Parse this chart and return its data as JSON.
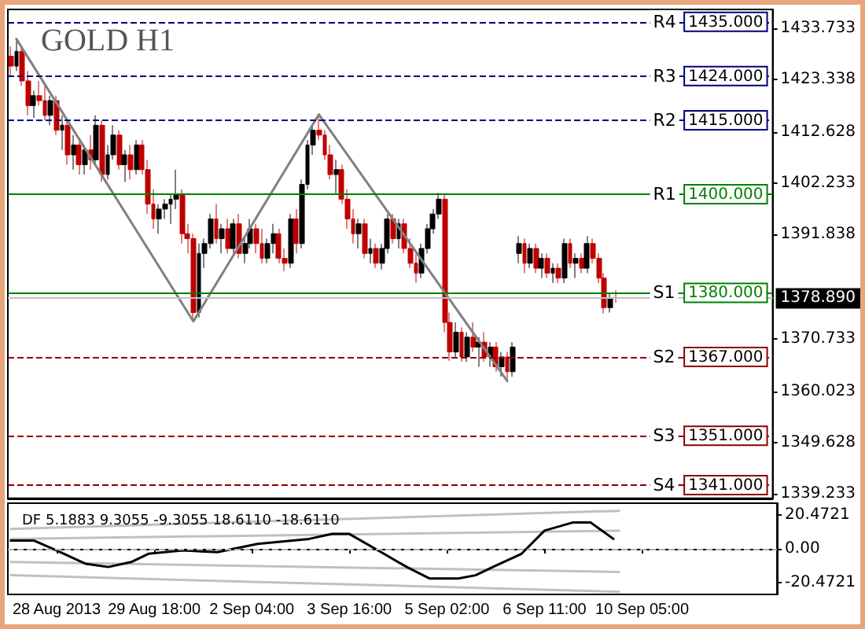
{
  "chart_data": [
    {
      "type": "candlestick",
      "title": "GOLD H1",
      "tick_labels": "y",
      "categories": [
        null,
        null,
        null,
        null,
        null,
        null,
        null,
        null,
        null,
        null,
        null,
        null,
        null,
        null,
        null,
        null,
        null,
        null,
        null,
        null,
        null,
        null,
        null,
        null,
        null,
        null,
        null,
        null,
        null,
        null,
        null,
        null,
        null,
        null,
        null,
        null,
        null,
        null,
        null,
        null,
        null,
        null,
        null,
        null,
        null,
        null,
        null,
        null,
        null,
        null,
        null,
        null,
        null,
        null,
        null,
        null,
        null,
        null,
        null,
        null,
        null,
        null,
        null,
        null,
        null,
        null,
        null,
        null,
        null,
        null,
        null,
        null,
        null,
        null,
        null,
        null,
        null,
        null,
        null,
        null,
        null,
        null,
        null,
        null,
        null,
        null,
        null,
        null,
        null,
        null,
        null,
        null,
        null,
        null,
        null,
        null,
        null,
        null,
        null,
        null,
        null,
        null,
        null,
        null,
        null,
        null,
        null,
        null,
        null,
        null,
        null,
        null,
        null,
        null,
        null,
        null,
        null,
        null,
        null,
        null,
        null,
        null,
        null,
        null,
        null,
        null,
        null,
        null,
        null,
        null,
        null,
        null,
        null,
        null
      ],
      "ylim": [
        1338.3,
        1437.5
      ],
      "yticks": [
        1339.233,
        1349.628,
        1360.023,
        1370.733,
        1391.838,
        1402.233,
        1412.628,
        1423.338,
        1433.733
      ],
      "ohlc": [
        [
          1428,
          1430,
          1424,
          1426
        ],
        [
          1426,
          1431.5,
          1425,
          1429
        ],
        [
          1429,
          1430,
          1422,
          1423
        ],
        [
          1423,
          1425,
          1416,
          1418
        ],
        [
          1418,
          1421,
          1415.5,
          1420
        ],
        [
          1420,
          1423,
          1418,
          1419
        ],
        [
          1419,
          1422,
          1415,
          1416
        ],
        [
          1416,
          1420,
          1414,
          1419
        ],
        [
          1419,
          1420,
          1412,
          1413
        ],
        [
          1413,
          1416,
          1409,
          1414
        ],
        [
          1414,
          1415,
          1406,
          1408
        ],
        [
          1408,
          1412,
          1405,
          1410
        ],
        [
          1410,
          1411,
          1404,
          1406
        ],
        [
          1406,
          1410,
          1404,
          1409
        ],
        [
          1409,
          1412,
          1405,
          1407
        ],
        [
          1407,
          1416,
          1406,
          1414
        ],
        [
          1414,
          1415,
          1402.5,
          1404
        ],
        [
          1404,
          1410,
          1403,
          1408
        ],
        [
          1408,
          1414,
          1407,
          1412
        ],
        [
          1412,
          1413,
          1405,
          1406
        ],
        [
          1406,
          1409,
          1402.5,
          1408
        ],
        [
          1408,
          1410,
          1403,
          1405
        ],
        [
          1405,
          1411,
          1404,
          1410
        ],
        [
          1410,
          1411,
          1404,
          1405
        ],
        [
          1405,
          1407,
          1396,
          1398
        ],
        [
          1398,
          1401,
          1393,
          1395
        ],
        [
          1395,
          1398,
          1392,
          1397
        ],
        [
          1397,
          1399,
          1395,
          1398
        ],
        [
          1398,
          1400,
          1394,
          1399
        ],
        [
          1399,
          1405,
          1397,
          1400
        ],
        [
          1400,
          1401,
          1390,
          1392
        ],
        [
          1392,
          1394,
          1388,
          1391
        ],
        [
          1391,
          1392,
          1374.2,
          1376
        ],
        [
          1376,
          1390,
          1375,
          1388
        ],
        [
          1388,
          1391,
          1385,
          1390
        ],
        [
          1390,
          1396,
          1389,
          1395
        ],
        [
          1395,
          1398,
          1390,
          1391
        ],
        [
          1391,
          1394,
          1388,
          1393
        ],
        [
          1393,
          1395,
          1388,
          1389
        ],
        [
          1389,
          1395,
          1388,
          1394
        ],
        [
          1394,
          1396,
          1387,
          1388
        ],
        [
          1388,
          1391,
          1386,
          1390
        ],
        [
          1390,
          1395,
          1389,
          1393
        ],
        [
          1393,
          1394,
          1388,
          1390
        ],
        [
          1390,
          1393,
          1386,
          1387
        ],
        [
          1387,
          1391,
          1386,
          1390
        ],
        [
          1390,
          1394,
          1388,
          1392
        ],
        [
          1392,
          1393,
          1386,
          1387
        ],
        [
          1387,
          1389,
          1384.4,
          1386
        ],
        [
          1386,
          1396,
          1385,
          1395
        ],
        [
          1395,
          1397,
          1388,
          1390
        ],
        [
          1390,
          1403,
          1389,
          1402
        ],
        [
          1402,
          1411,
          1401,
          1410
        ],
        [
          1410,
          1414,
          1408,
          1413
        ],
        [
          1413,
          1416.2,
          1411,
          1412
        ],
        [
          1412,
          1413,
          1407,
          1408
        ],
        [
          1408,
          1410,
          1403,
          1404
        ],
        [
          1404,
          1407,
          1400,
          1405
        ],
        [
          1405,
          1406,
          1398,
          1399
        ],
        [
          1399,
          1401,
          1393,
          1395
        ],
        [
          1395,
          1397,
          1390,
          1392
        ],
        [
          1392,
          1395,
          1389,
          1394
        ],
        [
          1394,
          1395,
          1387,
          1388
        ],
        [
          1388,
          1391,
          1386,
          1389
        ],
        [
          1389,
          1390,
          1385,
          1386
        ],
        [
          1386,
          1390,
          1384.7,
          1389
        ],
        [
          1389,
          1396,
          1388,
          1395
        ],
        [
          1395,
          1396,
          1390,
          1391
        ],
        [
          1391,
          1395,
          1389,
          1394
        ],
        [
          1394,
          1395,
          1388,
          1389
        ],
        [
          1389,
          1391,
          1385,
          1386
        ],
        [
          1386,
          1388,
          1382,
          1384
        ],
        [
          1384,
          1390,
          1383,
          1389
        ],
        [
          1389,
          1394,
          1388,
          1393
        ],
        [
          1393,
          1397,
          1392,
          1396
        ],
        [
          1396,
          1400.3,
          1395,
          1399
        ],
        [
          1399,
          1400,
          1372,
          1374
        ],
        [
          1374,
          1376,
          1366.2,
          1368
        ],
        [
          1368,
          1374,
          1367,
          1372
        ],
        [
          1372,
          1373,
          1366,
          1367
        ],
        [
          1367,
          1372,
          1366,
          1371
        ],
        [
          1371,
          1374,
          1368,
          1369
        ],
        [
          1369,
          1371,
          1365,
          1370
        ],
        [
          1370,
          1372,
          1366,
          1367
        ],
        [
          1367,
          1370,
          1365,
          1369
        ],
        [
          1369,
          1370,
          1364,
          1365
        ],
        [
          1365,
          1368,
          1363,
          1367
        ],
        [
          1367,
          1368,
          1362.1,
          1364
        ],
        [
          1364,
          1370,
          1363,
          1369
        ],
        [
          1388,
          1391.5,
          1386,
          1390
        ],
        [
          1390,
          1391,
          1384,
          1386
        ],
        [
          1386,
          1390,
          1385,
          1389
        ],
        [
          1389,
          1390,
          1384,
          1385
        ],
        [
          1385,
          1388,
          1383,
          1387
        ],
        [
          1387,
          1388,
          1383,
          1384
        ],
        [
          1384,
          1386,
          1382,
          1385
        ],
        [
          1385,
          1386,
          1382,
          1383
        ],
        [
          1383,
          1391,
          1382,
          1390
        ],
        [
          1390,
          1391,
          1385,
          1386
        ],
        [
          1386,
          1388,
          1383,
          1387
        ],
        [
          1387,
          1388,
          1384,
          1385
        ],
        [
          1385,
          1391.5,
          1384,
          1390
        ],
        [
          1390,
          1391,
          1386,
          1387
        ],
        [
          1387,
          1388,
          1382,
          1383
        ],
        [
          1383,
          1384,
          1375.8,
          1377
        ],
        [
          1377,
          1380,
          1376,
          1379
        ],
        [
          1379,
          1380.5,
          1378,
          1378.89
        ],
        null,
        null,
        null,
        null,
        null,
        null,
        null,
        null,
        null,
        null,
        null,
        null,
        null,
        null,
        null,
        null,
        null,
        null,
        null,
        null,
        null,
        null,
        null,
        null,
        null,
        null,
        null
      ],
      "colors": [
        "#c00000",
        "#000000",
        "#c00000",
        "#c00000",
        "#000000",
        "#c00000",
        "#c00000",
        "#000000",
        "#c00000",
        "#000000",
        "#c00000",
        "#000000",
        "#c00000",
        "#000000",
        "#c00000",
        "#000000",
        "#c00000",
        "#000000",
        "#000000",
        "#c00000",
        "#000000",
        "#c00000",
        "#000000",
        "#c00000",
        "#c00000",
        "#c00000",
        "#000000",
        "#000000",
        "#000000",
        "#000000",
        "#c00000",
        "#c00000",
        "#c00000",
        "#000000",
        "#000000",
        "#000000",
        "#c00000",
        "#000000",
        "#c00000",
        "#000000",
        "#c00000",
        "#000000",
        "#000000",
        "#c00000",
        "#c00000",
        "#000000",
        "#000000",
        "#c00000",
        "#c00000",
        "#000000",
        "#c00000",
        "#000000",
        "#000000",
        "#000000",
        "#c00000",
        "#c00000",
        "#c00000",
        "#000000",
        "#c00000",
        "#c00000",
        "#c00000",
        "#000000",
        "#c00000",
        "#000000",
        "#c00000",
        "#000000",
        "#000000",
        "#c00000",
        "#000000",
        "#c00000",
        "#c00000",
        "#c00000",
        "#000000",
        "#000000",
        "#000000",
        "#000000",
        "#c00000",
        "#c00000",
        "#000000",
        "#c00000",
        "#000000",
        "#c00000",
        "#000000",
        "#c00000",
        "#000000",
        "#c00000",
        "#000000",
        "#c00000",
        "#000000",
        "#000000",
        "#c00000",
        "#000000",
        "#c00000",
        "#000000",
        "#c00000",
        "#000000",
        "#c00000",
        "#000000",
        "#c00000",
        "#000000",
        "#c00000",
        "#000000",
        "#c00000",
        "#c00000",
        "#c00000",
        "#000000",
        "#c00000",
        null,
        null,
        null,
        null,
        null,
        null,
        null,
        null,
        null,
        null,
        null,
        null,
        null,
        null,
        null,
        null,
        null,
        null,
        null,
        null,
        null,
        null,
        null,
        null,
        null,
        null,
        null
      ],
      "series": [
        {
          "type": "line",
          "color": "#808080",
          "values": [
            null,
            1431.5,
            null,
            null,
            null,
            null,
            null,
            null,
            null,
            null,
            null,
            null,
            null,
            null,
            null,
            null,
            null,
            null,
            null,
            null,
            null,
            null,
            null,
            null,
            null,
            null,
            null,
            null,
            null,
            null,
            null,
            null,
            1374.2,
            null,
            null,
            null,
            null,
            null,
            null,
            null,
            null,
            null,
            null,
            null,
            null,
            null,
            null,
            null,
            null,
            null,
            null,
            null,
            null,
            null,
            1416.2,
            null,
            null,
            null,
            null,
            null,
            null,
            null,
            null,
            null,
            null,
            null,
            null,
            null,
            null,
            null,
            null,
            null,
            null,
            null,
            null,
            null,
            null,
            null,
            null,
            null,
            null,
            null,
            null,
            null,
            null,
            null,
            null,
            1362.1,
            null,
            null,
            null,
            null,
            null,
            null,
            null,
            null,
            null,
            null,
            null,
            null,
            null,
            null,
            null,
            null,
            null,
            null,
            null,
            null,
            null,
            null,
            null,
            null,
            null,
            null,
            null,
            null,
            null,
            null,
            null,
            null,
            null,
            null,
            null,
            null,
            null,
            null,
            null,
            null,
            null,
            null,
            null,
            null,
            null,
            null
          ]
        }
      ],
      "ref_lines": [
        {
          "axis": "y",
          "value": 1435,
          "label": "1435.000",
          "color": "#000080",
          "line_style": "dashed"
        },
        {
          "axis": "y",
          "value": 1424,
          "label": "1424.000",
          "color": "#000080",
          "line_style": "dashed"
        },
        {
          "axis": "y",
          "value": 1415,
          "label": "1415.000",
          "color": "#000080",
          "line_style": "dashed"
        },
        {
          "axis": "y",
          "value": 1400,
          "label": "1400.000",
          "color": "#008000",
          "line_style": "solid"
        },
        {
          "axis": "y",
          "value": 1380,
          "label": "1380.000",
          "color": "#008000",
          "line_style": "solid"
        },
        {
          "axis": "y",
          "value": 1367,
          "label": "1367.000",
          "color": "#8b0000",
          "line_style": "dashed"
        },
        {
          "axis": "y",
          "value": 1351,
          "label": "1351.000",
          "color": "#8b0000",
          "line_style": "dashed"
        },
        {
          "axis": "y",
          "value": 1341,
          "label": "1341.000",
          "color": "#8b0000",
          "line_style": "dashed"
        },
        {
          "axis": "y",
          "value": 1378.89,
          "label": "1378.890",
          "color": "#c0c0c0",
          "line_style": "solid"
        }
      ],
      "annotations": [
        {
          "text": "R4",
          "y": 1435
        },
        {
          "text": "R3",
          "y": 1424
        },
        {
          "text": "R2",
          "y": 1415
        },
        {
          "text": "R1",
          "y": 1400
        },
        {
          "text": "S1",
          "y": 1380
        },
        {
          "text": "S2",
          "y": 1367
        },
        {
          "text": "S3",
          "y": 1351
        },
        {
          "text": "S4",
          "y": 1341
        }
      ]
    },
    {
      "type": "line",
      "title": "DF 5.1883 9.3055 -9.3055 18.6110 -18.6110",
      "categories": [
        null,
        null,
        null,
        null,
        null,
        null,
        null,
        null,
        "28 Aug 2013",
        null,
        null,
        null,
        null,
        null,
        null,
        null,
        null,
        null,
        null,
        null,
        null,
        null,
        null,
        null,
        null,
        "29 Aug 18:00",
        null,
        null,
        null,
        null,
        null,
        null,
        null,
        null,
        null,
        null,
        null,
        null,
        null,
        null,
        null,
        null,
        "2 Sep 04:00",
        null,
        null,
        null,
        null,
        null,
        null,
        null,
        null,
        null,
        null,
        null,
        null,
        null,
        null,
        null,
        null,
        "3 Sep 16:00",
        null,
        null,
        null,
        null,
        null,
        null,
        null,
        null,
        null,
        null,
        null,
        null,
        null,
        null,
        null,
        null,
        "5 Sep 02:00",
        null,
        null,
        null,
        null,
        null,
        null,
        null,
        null,
        null,
        null,
        null,
        null,
        null,
        null,
        null,
        null,
        "6 Sep 11:00",
        null,
        null,
        null,
        null,
        null,
        null,
        null,
        null,
        null,
        null,
        null,
        null,
        null,
        null,
        null,
        null,
        "10 Sep 05:00",
        null,
        null,
        null,
        null,
        null,
        null,
        null,
        null,
        null,
        null,
        null,
        null,
        null,
        null,
        null,
        null,
        null,
        null,
        null,
        null,
        null,
        null,
        null
      ],
      "ylim": [
        -27.6,
        27.6
      ],
      "yticks": [
        -20.4721,
        {
          "value": 0,
          "label": "0.00"
        },
        20.4721
      ],
      "series": [
        {
          "color": "#c0c0c0",
          "values": [
            12,
            null,
            null,
            null,
            null,
            null,
            null,
            null,
            null,
            null,
            null,
            null,
            null,
            null,
            null,
            null,
            null,
            null,
            null,
            null,
            null,
            null,
            null,
            null,
            null,
            null,
            null,
            null,
            null,
            null,
            null,
            null,
            null,
            null,
            null,
            null,
            null,
            null,
            null,
            null,
            null,
            null,
            null,
            null,
            null,
            null,
            null,
            null,
            null,
            null,
            null,
            null,
            null,
            null,
            null,
            null,
            null,
            null,
            null,
            null,
            null,
            null,
            null,
            null,
            null,
            null,
            null,
            null,
            null,
            null,
            null,
            null,
            null,
            null,
            null,
            null,
            null,
            null,
            null,
            null,
            null,
            null,
            null,
            null,
            null,
            null,
            null,
            null,
            null,
            null,
            null,
            null,
            null,
            null,
            null,
            null,
            null,
            null,
            null,
            null,
            null,
            null,
            null,
            null,
            null,
            null,
            23,
            null,
            null,
            null,
            null,
            null,
            null,
            null,
            null,
            null,
            null,
            null,
            null,
            null,
            null,
            null,
            null,
            null,
            null,
            null,
            null,
            null,
            null,
            null,
            null,
            null,
            null,
            null
          ]
        },
        {
          "color": "#c0c0c0",
          "values": [
            6,
            null,
            null,
            null,
            null,
            null,
            null,
            null,
            null,
            null,
            null,
            null,
            null,
            null,
            null,
            null,
            null,
            null,
            null,
            null,
            null,
            null,
            null,
            null,
            null,
            null,
            null,
            null,
            null,
            null,
            null,
            null,
            null,
            null,
            null,
            null,
            null,
            null,
            null,
            null,
            null,
            null,
            null,
            null,
            null,
            null,
            null,
            null,
            null,
            null,
            null,
            null,
            null,
            null,
            null,
            null,
            null,
            null,
            null,
            null,
            null,
            null,
            null,
            null,
            null,
            null,
            null,
            null,
            null,
            null,
            null,
            null,
            null,
            null,
            null,
            null,
            null,
            null,
            null,
            null,
            null,
            null,
            null,
            null,
            null,
            null,
            null,
            null,
            null,
            null,
            null,
            null,
            null,
            null,
            null,
            null,
            null,
            null,
            null,
            null,
            null,
            null,
            null,
            null,
            null,
            null,
            11,
            null,
            null,
            null,
            null,
            null,
            null,
            null,
            null,
            null,
            null,
            null,
            null,
            null,
            null,
            null,
            null,
            null,
            null,
            null,
            null,
            null,
            null,
            null,
            null,
            null,
            null,
            null
          ]
        },
        {
          "color": "#c0c0c0",
          "values": [
            -8,
            null,
            null,
            null,
            null,
            null,
            null,
            null,
            null,
            null,
            null,
            null,
            null,
            null,
            null,
            null,
            null,
            null,
            null,
            null,
            null,
            null,
            null,
            null,
            null,
            null,
            null,
            null,
            null,
            null,
            null,
            null,
            null,
            null,
            null,
            null,
            null,
            null,
            null,
            null,
            null,
            null,
            null,
            null,
            null,
            null,
            null,
            null,
            null,
            null,
            null,
            null,
            null,
            null,
            null,
            null,
            null,
            null,
            null,
            null,
            null,
            null,
            null,
            null,
            null,
            null,
            null,
            null,
            null,
            null,
            null,
            null,
            null,
            null,
            null,
            null,
            null,
            null,
            null,
            null,
            null,
            null,
            null,
            null,
            null,
            null,
            null,
            null,
            null,
            null,
            null,
            null,
            null,
            null,
            null,
            null,
            null,
            null,
            null,
            null,
            null,
            null,
            null,
            null,
            null,
            null,
            -14,
            null,
            null,
            null,
            null,
            null,
            null,
            null,
            null,
            null,
            null,
            null,
            null,
            null,
            null,
            null,
            null,
            null,
            null,
            null,
            null,
            null,
            null,
            null,
            null,
            null,
            null,
            null
          ]
        },
        {
          "color": "#c0c0c0",
          "values": [
            -16,
            null,
            null,
            null,
            null,
            null,
            null,
            null,
            null,
            null,
            null,
            null,
            null,
            null,
            null,
            null,
            null,
            null,
            null,
            null,
            null,
            null,
            null,
            null,
            null,
            null,
            null,
            null,
            null,
            null,
            null,
            null,
            null,
            null,
            null,
            null,
            null,
            null,
            null,
            null,
            null,
            null,
            null,
            null,
            null,
            null,
            null,
            null,
            null,
            null,
            null,
            null,
            null,
            null,
            null,
            null,
            null,
            null,
            null,
            null,
            null,
            null,
            null,
            null,
            null,
            null,
            null,
            null,
            null,
            null,
            null,
            null,
            null,
            null,
            null,
            null,
            null,
            null,
            null,
            null,
            null,
            null,
            null,
            null,
            null,
            null,
            null,
            null,
            null,
            null,
            null,
            null,
            null,
            null,
            null,
            null,
            null,
            null,
            null,
            null,
            null,
            null,
            null,
            null,
            null,
            null,
            -26,
            null,
            null,
            null,
            null,
            null,
            null,
            null,
            null,
            null,
            null,
            null,
            null,
            null,
            null,
            null,
            null,
            null,
            null,
            null,
            null,
            null,
            null,
            null,
            null,
            null,
            null,
            null
          ]
        },
        {
          "color": "#000000",
          "values": [
            5,
            null,
            null,
            null,
            5,
            null,
            null,
            null,
            -1,
            null,
            null,
            null,
            null,
            -9,
            null,
            null,
            null,
            -11,
            null,
            null,
            null,
            -8,
            null,
            null,
            -3,
            null,
            null,
            null,
            null,
            null,
            -1,
            null,
            null,
            null,
            null,
            null,
            -2,
            null,
            null,
            null,
            null,
            null,
            null,
            3,
            null,
            null,
            null,
            null,
            null,
            null,
            null,
            null,
            6,
            null,
            null,
            null,
            9,
            null,
            null,
            9,
            null,
            null,
            null,
            null,
            null,
            -3,
            null,
            null,
            null,
            -11,
            null,
            null,
            null,
            -18,
            null,
            null,
            null,
            null,
            -18,
            null,
            null,
            -16,
            null,
            null,
            -11,
            null,
            null,
            null,
            null,
            -3,
            null,
            null,
            null,
            11,
            null,
            null,
            null,
            null,
            16,
            null,
            null,
            16,
            null,
            null,
            null,
            6,
            null,
            null,
            null,
            null,
            null,
            null,
            null,
            null,
            null,
            null,
            null,
            null,
            null,
            null,
            null,
            null,
            null,
            null,
            null,
            null,
            null,
            null,
            null,
            null,
            null,
            null,
            null,
            null
          ]
        }
      ],
      "ref_lines": [
        {
          "axis": "y",
          "value": 0,
          "label": null,
          "color": "#b0b0b0",
          "line_style": "dashed"
        }
      ]
    }
  ]
}
